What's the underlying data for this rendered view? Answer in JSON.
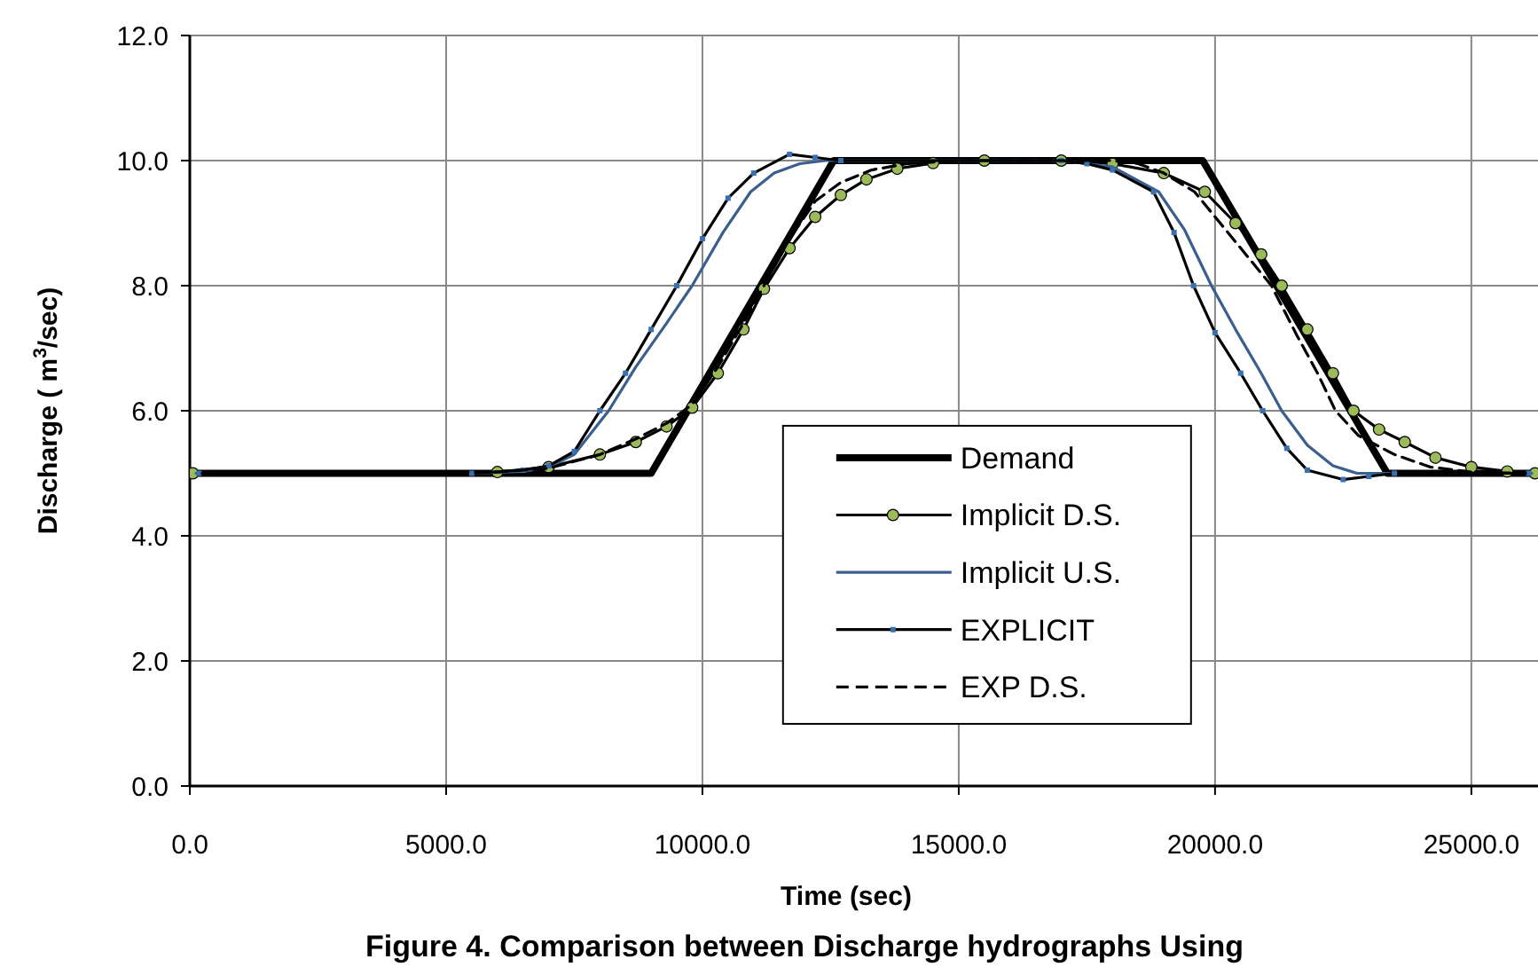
{
  "chart_data": {
    "type": "line",
    "xlabel": "Time (sec)",
    "ylabel": "Discharge ( m$^{3}$/sec)",
    "annotations": [
      "Figure 4. Comparison between Discharge hydrographs Using"
    ],
    "xlim": [
      0,
      26300
    ],
    "ylim": [
      0,
      12
    ],
    "xticks": [
      {
        "value": 0,
        "label": "0.0"
      },
      {
        "value": 5000,
        "label": "5000.0"
      },
      {
        "value": 10000,
        "label": "10000.0"
      },
      {
        "value": 15000,
        "label": "15000.0"
      },
      {
        "value": 20000,
        "label": "20000.0"
      },
      {
        "value": 25000,
        "label": "25000.0"
      }
    ],
    "yticks": [
      {
        "value": 0,
        "label": "0.0"
      },
      {
        "value": 2,
        "label": "2.0"
      },
      {
        "value": 4,
        "label": "4.0"
      },
      {
        "value": 6,
        "label": "6.0"
      },
      {
        "value": 8,
        "label": "8.0"
      },
      {
        "value": 10,
        "label": "10.0"
      },
      {
        "value": 12,
        "label": "12.0"
      }
    ],
    "grid": true,
    "legend": "bottom",
    "series": [
      {
        "name": "Demand",
        "color": "#000000",
        "x": [
          0,
          9000,
          12560,
          19760,
          23360,
          26300
        ],
        "values": [
          5,
          5,
          10,
          10,
          5,
          5
        ]
      },
      {
        "name": "Implicit D.S.",
        "color": "#000000",
        "marker": "circle",
        "x": [
          60,
          6000,
          7000,
          8000,
          8700,
          9300,
          9800,
          10300,
          10800,
          11200,
          11700,
          12200,
          12700,
          13200,
          13800,
          14500,
          15500,
          17000,
          18000,
          19000,
          19800,
          20400,
          20900,
          21300,
          21800,
          22300,
          22700,
          23200,
          23700,
          24300,
          25000,
          25700,
          26240
        ],
        "values": [
          5,
          5.02,
          5.1,
          5.3,
          5.5,
          5.75,
          6.05,
          6.6,
          7.3,
          7.95,
          8.6,
          9.1,
          9.45,
          9.7,
          9.87,
          9.96,
          10,
          10,
          9.95,
          9.8,
          9.5,
          9.0,
          8.5,
          8.0,
          7.3,
          6.6,
          6.0,
          5.7,
          5.5,
          5.25,
          5.1,
          5.03,
          5
        ]
      },
      {
        "name": "Implicit U.S.",
        "color": "#3a5f8f",
        "x": [
          120,
          5500,
          6500,
          7000,
          7500,
          8170,
          8700,
          9300,
          9800,
          10400,
          10940,
          11400,
          11900,
          12400,
          17000,
          18000,
          18900,
          19400,
          19930,
          20400,
          20900,
          21300,
          21800,
          22300,
          22770,
          26180
        ],
        "values": [
          5,
          5,
          5.03,
          5.1,
          5.3,
          6.0,
          6.7,
          7.4,
          8.0,
          8.85,
          9.5,
          9.8,
          9.95,
          10,
          10,
          9.9,
          9.5,
          8.9,
          8.0,
          7.3,
          6.6,
          6.0,
          5.45,
          5.12,
          5.0,
          5
        ]
      },
      {
        "name": "EXPLICIT",
        "color": "#000000",
        "marker": "square",
        "x": [
          180,
          5500,
          6500,
          7000,
          7500,
          8000,
          8500,
          9000,
          9500,
          10000,
          10500,
          11000,
          11700,
          12200,
          12700,
          17000,
          17500,
          18000,
          18800,
          19200,
          19580,
          20000,
          20500,
          20930,
          21400,
          21800,
          22500,
          23000,
          23500,
          26120
        ],
        "values": [
          5,
          5,
          5.05,
          5.12,
          5.35,
          6.0,
          6.6,
          7.3,
          8.0,
          8.75,
          9.4,
          9.8,
          10.1,
          10.05,
          10,
          10,
          9.95,
          9.85,
          9.5,
          8.85,
          8.0,
          7.25,
          6.6,
          6.0,
          5.4,
          5.05,
          4.9,
          4.95,
          5,
          5
        ]
      },
      {
        "name": "EXP D.S.",
        "color": "#000000",
        "line_style": "dashed",
        "x": [
          240,
          6000,
          7000,
          8000,
          8700,
          9300,
          9800,
          10300,
          10800,
          11200,
          11700,
          12200,
          12700,
          13300,
          14000,
          15000,
          18000,
          18500,
          19000,
          19600,
          20200,
          20700,
          21100,
          21600,
          22000,
          22350,
          22800,
          23500,
          24200,
          25000,
          26060
        ],
        "values": [
          5,
          5.02,
          5.08,
          5.3,
          5.55,
          5.8,
          6.1,
          6.7,
          7.4,
          8.0,
          8.75,
          9.35,
          9.65,
          9.85,
          9.95,
          10,
          10,
          9.95,
          9.8,
          9.5,
          8.9,
          8.4,
          8.0,
          7.2,
          6.6,
          6.0,
          5.6,
          5.3,
          5.1,
          5.02,
          5
        ]
      }
    ]
  }
}
